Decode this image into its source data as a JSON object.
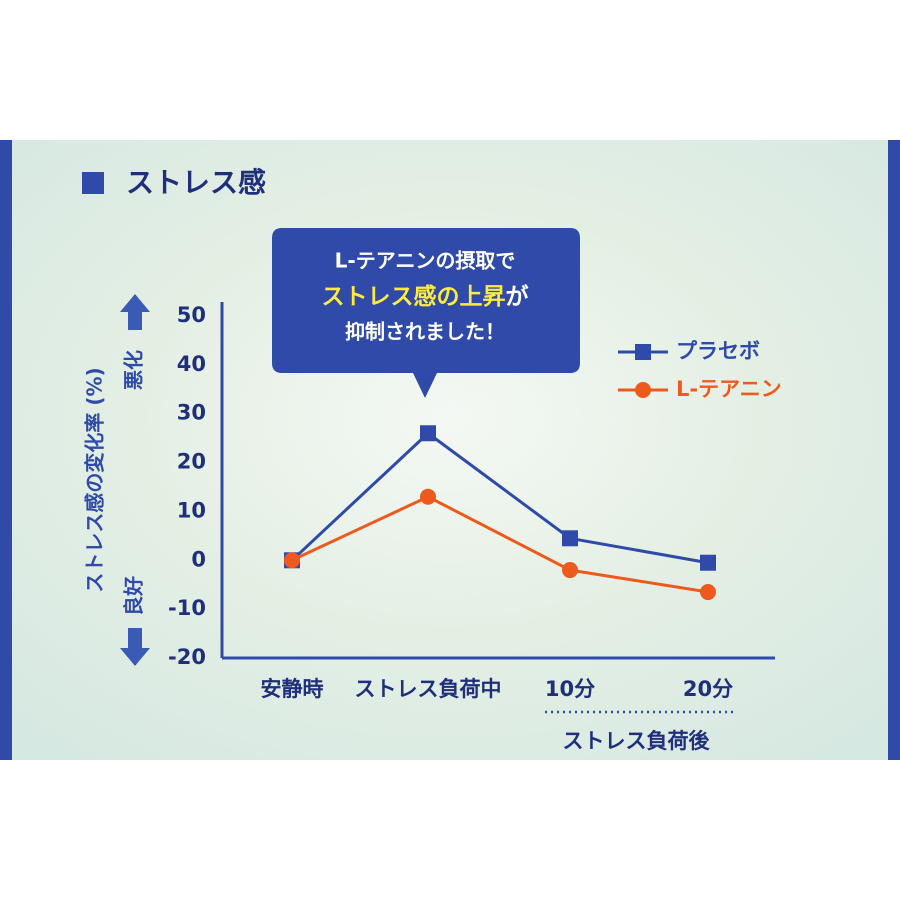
{
  "chart_data": {
    "type": "line",
    "title": "ストレス感",
    "y_label": "ストレス感の変化率 (%)",
    "y_up_label": "悪化",
    "y_down_label": "良好",
    "categories": [
      "安静時",
      "ストレス負荷中",
      "10分",
      "20分"
    ],
    "group_label": "ストレス負荷後",
    "callout": {
      "line1": "L-テアニンの摂取で",
      "line2_highlight": "ストレス感の上昇",
      "line2_rest": "が",
      "line3": "抑制されました！"
    },
    "series": [
      {
        "name": "プラセボ",
        "color": "#2f4aa8",
        "marker": "square",
        "values": [
          0,
          26,
          4.5,
          -0.5
        ]
      },
      {
        "name": "L-テアニン",
        "color": "#ee5a1e",
        "marker": "circle",
        "values": [
          0,
          13,
          -2,
          -6.5
        ]
      }
    ],
    "ylim": [
      -20,
      50
    ],
    "yticks": [
      -20,
      -10,
      0,
      10,
      20,
      30,
      40,
      50
    ],
    "grid": false,
    "legend": "top-right"
  }
}
